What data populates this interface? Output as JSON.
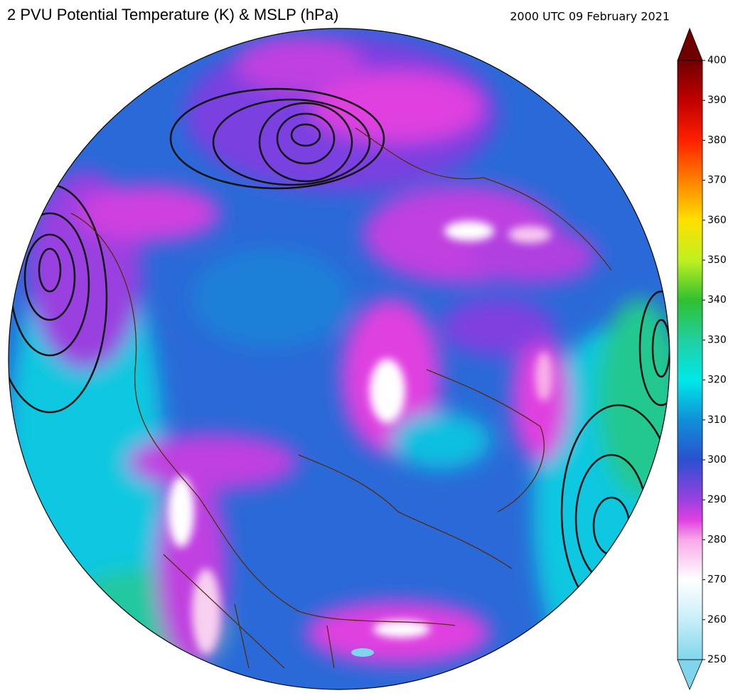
{
  "title": "2 PVU Potential Temperature (K) & MSLP (hPa)",
  "timestamp": "2000 UTC 09 February 2021",
  "colorbar": {
    "range": [
      250,
      400
    ],
    "ticks": [
      250,
      260,
      270,
      280,
      290,
      300,
      310,
      320,
      330,
      340,
      350,
      360,
      370,
      380,
      390,
      400
    ]
  }
}
